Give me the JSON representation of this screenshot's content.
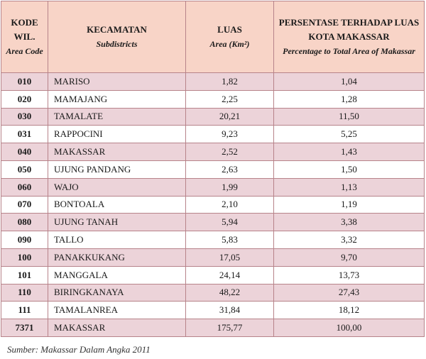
{
  "header": {
    "code": "KODE WIL.",
    "code_en": "Area Code",
    "district": "KECAMATAN",
    "district_en": "Subdistricts",
    "area": "LUAS",
    "area_en": "Area (Km²)",
    "pct": "PERSENTASE TERHADAP LUAS KOTA MAKASSAR",
    "pct_en": "Percentage to Total Area of Makassar"
  },
  "rows": [
    {
      "code": "010",
      "name": "MARISO",
      "area": "1,82",
      "pct": "1,04"
    },
    {
      "code": "020",
      "name": "MAMAJANG",
      "area": "2,25",
      "pct": "1,28"
    },
    {
      "code": "030",
      "name": "TAMALATE",
      "area": "20,21",
      "pct": "11,50"
    },
    {
      "code": "031",
      "name": "RAPPOCINI",
      "area": "9,23",
      "pct": "5,25"
    },
    {
      "code": "040",
      "name": "MAKASSAR",
      "area": "2,52",
      "pct": "1,43"
    },
    {
      "code": "050",
      "name": "UJUNG PANDANG",
      "area": "2,63",
      "pct": "1,50"
    },
    {
      "code": "060",
      "name": "WAJO",
      "area": "1,99",
      "pct": "1,13"
    },
    {
      "code": "070",
      "name": "BONTOALA",
      "area": "2,10",
      "pct": "1,19"
    },
    {
      "code": "080",
      "name": "UJUNG TANAH",
      "area": "5,94",
      "pct": "3,38"
    },
    {
      "code": "090",
      "name": "TALLO",
      "area": "5,83",
      "pct": "3,32"
    },
    {
      "code": "100",
      "name": "PANAKKUKANG",
      "area": "17,05",
      "pct": "9,70"
    },
    {
      "code": "101",
      "name": "MANGGALA",
      "area": "24,14",
      "pct": "13,73"
    },
    {
      "code": "110",
      "name": "BIRINGKANAYA",
      "area": "48,22",
      "pct": "27,43"
    },
    {
      "code": "111",
      "name": "TAMALANREA",
      "area": "31,84",
      "pct": "18,12"
    },
    {
      "code": "7371",
      "name": "MAKASSAR",
      "area": "175,77",
      "pct": "100,00"
    }
  ],
  "source": "Sumber:  Makassar Dalam Angka 2011"
}
